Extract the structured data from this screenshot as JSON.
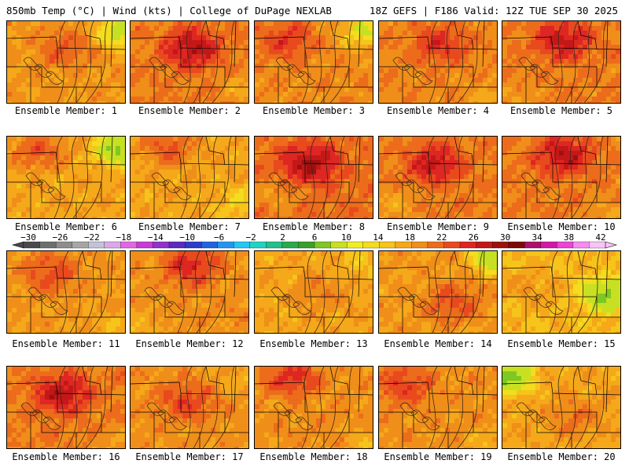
{
  "header": {
    "left": "850mb Temp (°C) | Wind (kts) | College of DuPage NEXLAB",
    "right": "18Z GEFS | F186 Valid: 12Z TUE SEP 30 2025"
  },
  "colors": {
    "cold": [
      "#4a4a4a",
      "#6e6e6e",
      "#8d8d8d",
      "#a6a6a6",
      "#c2c2d8",
      "#dca8e8",
      "#e266e2",
      "#c93ad6",
      "#8f33cc",
      "#5b2cc0",
      "#2a3ec8",
      "#1e64e0",
      "#2096f0",
      "#24c6f4",
      "#22d2c2",
      "#22c08a",
      "#2aaa4c",
      "#3aa02c",
      "#7ec822",
      "#c8e022",
      "#eeee22"
    ],
    "warm": [
      "#f4dc1e",
      "#f6c41a",
      "#f5a81a",
      "#f08e1a",
      "#ec6c1c",
      "#e84a1e",
      "#de2622",
      "#c41818",
      "#9e1010",
      "#7e0808",
      "#b00e6a",
      "#d418a6",
      "#ec44d4",
      "#f58cf0",
      "#f8c4f4"
    ],
    "contour": "#3a2a1a",
    "outline": "#000000"
  },
  "color_scale": {
    "labels": [
      "−30",
      "−26",
      "−22",
      "−18",
      "−14",
      "−10",
      "−6",
      "−2",
      "2",
      "6",
      "10",
      "14",
      "18",
      "22",
      "26",
      "30",
      "34",
      "38",
      "42"
    ]
  },
  "members": [
    {
      "id": 1,
      "label": "Ensemble Member: 1",
      "base": 0.35,
      "hot": [
        0.45,
        0.3,
        0.45
      ],
      "cool": [
        0.95,
        0.1,
        0.85
      ]
    },
    {
      "id": 2,
      "label": "Ensemble Member: 2",
      "base": 0.45,
      "hot": [
        0.5,
        0.3,
        0.95
      ],
      "cool": [
        0.95,
        0.8,
        0.3
      ]
    },
    {
      "id": 3,
      "label": "Ensemble Member: 3",
      "base": 0.4,
      "hot": [
        0.25,
        0.2,
        0.6
      ],
      "cool": [
        0.9,
        0.1,
        0.7
      ]
    },
    {
      "id": 4,
      "label": "Ensemble Member: 4",
      "base": 0.42,
      "hot": [
        0.5,
        0.25,
        0.6
      ],
      "cool": [
        0.9,
        0.9,
        0.2
      ]
    },
    {
      "id": 5,
      "label": "Ensemble Member: 5",
      "base": 0.45,
      "hot": [
        0.5,
        0.2,
        0.85
      ],
      "cool": [
        0.1,
        0.9,
        0.2
      ]
    },
    {
      "id": 6,
      "label": "Ensemble Member: 6",
      "base": 0.3,
      "hot": [
        0.25,
        0.15,
        0.6
      ],
      "cool": [
        0.92,
        0.12,
        1.0
      ]
    },
    {
      "id": 7,
      "label": "Ensemble Member: 7",
      "base": 0.3,
      "hot": [
        0.3,
        0.1,
        0.6
      ],
      "cool": [
        0.9,
        0.8,
        0.3
      ]
    },
    {
      "id": 8,
      "label": "Ensemble Member: 8",
      "base": 0.5,
      "hot": [
        0.45,
        0.3,
        0.9
      ],
      "cool": [
        0.15,
        0.7,
        0.25
      ]
    },
    {
      "id": 9,
      "label": "Ensemble Member: 9",
      "base": 0.45,
      "hot": [
        0.45,
        0.3,
        0.8
      ],
      "cool": [
        0.1,
        0.8,
        0.25
      ]
    },
    {
      "id": 10,
      "label": "Ensemble Member: 10",
      "base": 0.45,
      "hot": [
        0.5,
        0.2,
        0.9
      ],
      "cool": [
        0.9,
        0.9,
        0.2
      ]
    },
    {
      "id": 11,
      "label": "Ensemble Member: 11",
      "base": 0.35,
      "hot": [
        0.35,
        0.25,
        0.6
      ],
      "cool": [
        0.9,
        0.9,
        0.2
      ]
    },
    {
      "id": 12,
      "label": "Ensemble Member: 12",
      "base": 0.38,
      "hot": [
        0.5,
        0.15,
        0.8
      ],
      "cool": [
        0.1,
        0.9,
        0.2
      ]
    },
    {
      "id": 13,
      "label": "Ensemble Member: 13",
      "base": 0.3,
      "hot": [
        0.55,
        0.5,
        0.3
      ],
      "cool": [
        0.9,
        0.1,
        0.2
      ]
    },
    {
      "id": 14,
      "label": "Ensemble Member: 14",
      "base": 0.35,
      "hot": [
        0.6,
        0.6,
        0.55
      ],
      "cool": [
        0.95,
        0.05,
        0.9
      ]
    },
    {
      "id": 15,
      "label": "Ensemble Member: 15",
      "base": 0.22,
      "hot": [
        0.2,
        0.4,
        0.3
      ],
      "cool": [
        0.85,
        0.5,
        0.9
      ]
    },
    {
      "id": 16,
      "label": "Ensemble Member: 16",
      "base": 0.45,
      "hot": [
        0.45,
        0.3,
        0.9
      ],
      "cool": [
        0.9,
        0.9,
        0.2
      ]
    },
    {
      "id": 17,
      "label": "Ensemble Member: 17",
      "base": 0.38,
      "hot": [
        0.45,
        0.4,
        0.6
      ],
      "cool": [
        0.9,
        0.1,
        0.2
      ]
    },
    {
      "id": 18,
      "label": "Ensemble Member: 18",
      "base": 0.38,
      "hot": [
        0.3,
        0.1,
        0.7
      ],
      "cool": [
        0.9,
        0.9,
        0.2
      ]
    },
    {
      "id": 19,
      "label": "Ensemble Member: 19",
      "base": 0.38,
      "hot": [
        0.2,
        0.2,
        0.6
      ],
      "cool": [
        0.9,
        0.9,
        0.2
      ]
    },
    {
      "id": 20,
      "label": "Ensemble Member: 20",
      "base": 0.3,
      "hot": [
        0.6,
        0.6,
        0.4
      ],
      "cool": [
        0.05,
        0.1,
        1.1
      ]
    }
  ]
}
